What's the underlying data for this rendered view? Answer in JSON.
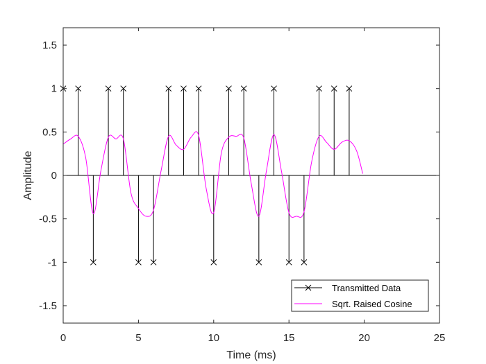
{
  "chart_data": {
    "type": "line",
    "title": "",
    "xlabel": "Time (ms)",
    "ylabel": "Amplitude",
    "xlim": [
      0,
      25
    ],
    "ylim": [
      -1.7,
      1.7
    ],
    "xticks": [
      0,
      5,
      10,
      15,
      20,
      25
    ],
    "yticks": [
      -1.5,
      -1,
      -0.5,
      0,
      0.5,
      1,
      1.5
    ],
    "xtick_labels": [
      "0",
      "5",
      "10",
      "15",
      "20",
      "25"
    ],
    "ytick_labels": [
      "-1.5",
      "-1",
      "-0.5",
      "0",
      "0.5",
      "1",
      "1.5"
    ],
    "grid": false,
    "legend_position": "bottom-right",
    "series": [
      {
        "name": "Transmitted Data",
        "style": "stem",
        "marker": "x",
        "color": "#000000",
        "x": [
          0,
          1,
          2,
          3,
          4,
          5,
          6,
          7,
          8,
          9,
          10,
          11,
          12,
          13,
          14,
          15,
          16,
          17,
          18,
          19
        ],
        "values": [
          1,
          1,
          -1,
          1,
          1,
          -1,
          -1,
          1,
          1,
          1,
          -1,
          1,
          1,
          -1,
          1,
          -1,
          -1,
          1,
          1,
          1
        ]
      },
      {
        "name": "Sqrt. Raised Cosine",
        "style": "line",
        "color": "#ff00ff",
        "x": [
          0,
          0.5,
          1,
          1.5,
          2,
          2.5,
          3,
          3.5,
          4,
          4.5,
          5,
          5.5,
          6,
          6.5,
          7,
          7.5,
          8,
          8.5,
          9,
          9.5,
          10,
          10.5,
          11,
          11.5,
          12,
          12.5,
          13,
          13.5,
          14,
          14.5,
          15,
          15.5,
          16,
          16.5,
          17,
          17.5,
          18,
          18.5,
          19,
          19.5,
          19.9
        ],
        "values": [
          0.36,
          0.42,
          0.45,
          0.2,
          -0.44,
          0.05,
          0.44,
          0.42,
          0.42,
          -0.2,
          -0.38,
          -0.47,
          -0.4,
          0.05,
          0.45,
          0.35,
          0.3,
          0.44,
          0.46,
          -0.15,
          -0.43,
          0.25,
          0.44,
          0.45,
          0.43,
          -0.1,
          -0.47,
          0.05,
          0.47,
          0.05,
          -0.43,
          -0.47,
          -0.42,
          0.15,
          0.45,
          0.38,
          0.3,
          0.38,
          0.4,
          0.28,
          0.02
        ]
      }
    ]
  }
}
